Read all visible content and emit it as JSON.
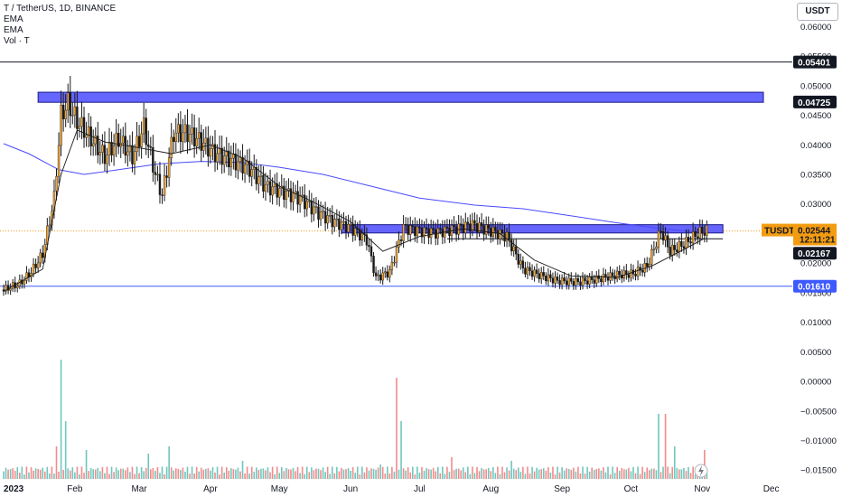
{
  "legend": {
    "symbol_line": "T / TetherUS, 1D, BINANCE",
    "ema1": "EMA",
    "ema2": "EMA",
    "vol": "Vol · T"
  },
  "currency_button": "USDT",
  "colors": {
    "candle_up": "#1a1a1a",
    "candle_down": "#1a1a1a",
    "candle_up_body": "#f0a532",
    "ema_fast": "#1a1a1a",
    "ema_slow": "#4a4aff",
    "zone_fill": "#4a4aff",
    "volume_up": "#6fc7bd",
    "volume_down": "#f28b8b",
    "current_price": "#f39c12",
    "support_line": "#3d5afe"
  },
  "chart_data": {
    "type": "candlestick",
    "symbol": "T / TetherUS",
    "interval": "1D",
    "exchange": "BINANCE",
    "x_labels": [
      "2023",
      "Feb",
      "Mar",
      "Apr",
      "May",
      "Jun",
      "Jul",
      "Aug",
      "Sep",
      "Oct",
      "Nov",
      "Dec"
    ],
    "y_ticks": [
      "0.06000",
      "0.05500",
      "0.05000",
      "0.04500",
      "0.04000",
      "0.03500",
      "0.03000",
      "0.02500",
      "0.02000",
      "0.01500",
      "0.01000",
      "0.00500",
      "0.00000",
      "−0.00500",
      "−0.01000",
      "−0.01500"
    ],
    "y_tick_values": [
      0.06,
      0.055,
      0.05,
      0.045,
      0.04,
      0.035,
      0.03,
      0.025,
      0.02,
      0.015,
      0.01,
      0.005,
      0.0,
      -0.005,
      -0.01,
      -0.015
    ],
    "ylim": [
      -0.0165,
      0.0645
    ],
    "date_range": [
      "2023-01-01",
      "2023-11-03"
    ],
    "price_path": [
      [
        "2023-01-01",
        0.0155
      ],
      [
        "2023-01-08",
        0.0165
      ],
      [
        "2023-01-13",
        0.0185
      ],
      [
        "2023-01-18",
        0.0215
      ],
      [
        "2023-01-23",
        0.031
      ],
      [
        "2023-01-26",
        0.045
      ],
      [
        "2023-01-29",
        0.047
      ],
      [
        "2023-02-02",
        0.044
      ],
      [
        "2023-02-08",
        0.041
      ],
      [
        "2023-02-14",
        0.038
      ],
      [
        "2023-02-20",
        0.041
      ],
      [
        "2023-02-26",
        0.038
      ],
      [
        "2023-03-03",
        0.043
      ],
      [
        "2023-03-08",
        0.035
      ],
      [
        "2023-03-11",
        0.0315
      ],
      [
        "2023-03-16",
        0.042
      ],
      [
        "2023-03-22",
        0.042
      ],
      [
        "2023-03-28",
        0.0405
      ],
      [
        "2023-04-03",
        0.0385
      ],
      [
        "2023-04-10",
        0.0375
      ],
      [
        "2023-04-18",
        0.036
      ],
      [
        "2023-04-25",
        0.033
      ],
      [
        "2023-05-03",
        0.032
      ],
      [
        "2023-05-10",
        0.031
      ],
      [
        "2023-05-18",
        0.0285
      ],
      [
        "2023-05-25",
        0.027
      ],
      [
        "2023-06-01",
        0.026
      ],
      [
        "2023-06-08",
        0.024
      ],
      [
        "2023-06-12",
        0.0175
      ],
      [
        "2023-06-18",
        0.0185
      ],
      [
        "2023-06-24",
        0.026
      ],
      [
        "2023-07-01",
        0.0255
      ],
      [
        "2023-07-08",
        0.0252
      ],
      [
        "2023-07-16",
        0.0258
      ],
      [
        "2023-07-24",
        0.0265
      ],
      [
        "2023-08-01",
        0.0255
      ],
      [
        "2023-08-08",
        0.0245
      ],
      [
        "2023-08-15",
        0.019
      ],
      [
        "2023-08-22",
        0.018
      ],
      [
        "2023-08-30",
        0.017
      ],
      [
        "2023-09-08",
        0.0168
      ],
      [
        "2023-09-15",
        0.0172
      ],
      [
        "2023-09-25",
        0.018
      ],
      [
        "2023-10-02",
        0.0182
      ],
      [
        "2023-10-08",
        0.0195
      ],
      [
        "2023-10-14",
        0.0255
      ],
      [
        "2023-10-18",
        0.022
      ],
      [
        "2023-10-24",
        0.0232
      ],
      [
        "2023-10-30",
        0.025
      ],
      [
        "2023-11-02",
        0.0254
      ]
    ],
    "ema_fast_path": [
      [
        "2023-01-01",
        0.0152
      ],
      [
        "2023-01-18",
        0.019
      ],
      [
        "2023-01-26",
        0.035
      ],
      [
        "2023-02-02",
        0.0425
      ],
      [
        "2023-02-14",
        0.0405
      ],
      [
        "2023-03-01",
        0.0395
      ],
      [
        "2023-03-15",
        0.0385
      ],
      [
        "2023-04-01",
        0.04
      ],
      [
        "2023-04-15",
        0.0378
      ],
      [
        "2023-05-01",
        0.033
      ],
      [
        "2023-05-15",
        0.0305
      ],
      [
        "2023-06-01",
        0.027
      ],
      [
        "2023-06-15",
        0.022
      ],
      [
        "2023-07-01",
        0.0245
      ],
      [
        "2023-07-20",
        0.0258
      ],
      [
        "2023-08-05",
        0.025
      ],
      [
        "2023-08-20",
        0.0205
      ],
      [
        "2023-09-05",
        0.0178
      ],
      [
        "2023-09-25",
        0.0176
      ],
      [
        "2023-10-10",
        0.0195
      ],
      [
        "2023-10-25",
        0.0225
      ],
      [
        "2023-11-02",
        0.0242
      ]
    ],
    "ema_slow_path": [
      [
        "2023-01-01",
        0.0402
      ],
      [
        "2023-01-12",
        0.0385
      ],
      [
        "2023-01-25",
        0.0358
      ],
      [
        "2023-02-05",
        0.035
      ],
      [
        "2023-02-20",
        0.0358
      ],
      [
        "2023-03-10",
        0.0368
      ],
      [
        "2023-03-28",
        0.0372
      ],
      [
        "2023-04-15",
        0.037
      ],
      [
        "2023-05-01",
        0.0362
      ],
      [
        "2023-05-20",
        0.035
      ],
      [
        "2023-06-10",
        0.033
      ],
      [
        "2023-07-01",
        0.031
      ],
      [
        "2023-07-25",
        0.0298
      ],
      [
        "2023-08-15",
        0.0292
      ],
      [
        "2023-09-05",
        0.028
      ],
      [
        "2023-09-25",
        0.0268
      ],
      [
        "2023-10-15",
        0.0258
      ],
      [
        "2023-11-02",
        0.0251
      ]
    ],
    "volume_bars": [
      [
        "2023-01-24",
        0.9
      ],
      [
        "2023-01-26",
        3.3
      ],
      [
        "2023-01-28",
        1.6
      ],
      [
        "2023-02-06",
        0.8
      ],
      [
        "2023-03-05",
        0.7
      ],
      [
        "2023-03-14",
        0.9
      ],
      [
        "2023-04-15",
        0.5
      ],
      [
        "2023-06-14",
        0.4
      ],
      [
        "2023-06-21",
        2.8
      ],
      [
        "2023-06-23",
        1.6
      ],
      [
        "2023-07-15",
        0.6
      ],
      [
        "2023-08-10",
        0.5
      ],
      [
        "2023-10-13",
        1.8
      ],
      [
        "2023-10-16",
        1.8
      ],
      [
        "2023-10-20",
        0.9
      ],
      [
        "2023-11-02",
        0.8
      ]
    ],
    "volume_unit": "relative",
    "horizontal_lines": [
      {
        "price": 0.05401,
        "label": "0.05401",
        "style": "solid"
      },
      {
        "price": 0.04725,
        "label": "0.04725",
        "style": "zone"
      },
      {
        "price": 0.02511,
        "label": "0.02511",
        "style": "ema"
      },
      {
        "price": 0.02412,
        "label": "0.02412",
        "style": "segment"
      },
      {
        "price": 0.02167,
        "label": "0.02167",
        "style": "ema"
      },
      {
        "price": 0.0161,
        "label": "0.01610",
        "style": "support"
      }
    ],
    "zones": [
      {
        "from_date": "2023-01-16",
        "to_date": "2023-12-01",
        "top": 0.0489,
        "bottom": 0.0472
      },
      {
        "from_date": "2023-05-28",
        "to_date": "2023-11-10",
        "top": 0.0265,
        "bottom": 0.0251
      }
    ],
    "current_price": {
      "symbol": "TUSDT",
      "price": "0.02544",
      "countdown": "12:11:21",
      "value": 0.02544
    }
  }
}
